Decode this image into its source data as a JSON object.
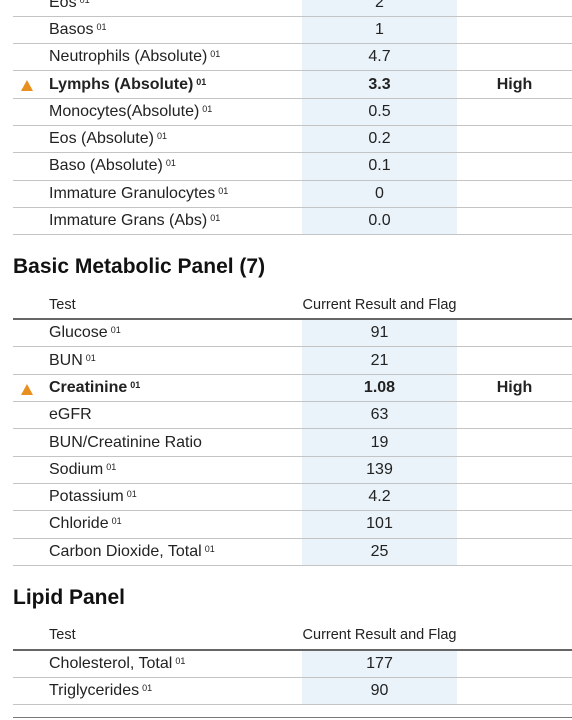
{
  "sections": [
    {
      "rows": [
        {
          "test": "Eos",
          "lab": "01",
          "result": "2"
        },
        {
          "test": "Basos",
          "lab": "01",
          "result": "1"
        },
        {
          "test": "Neutrophils (Absolute)",
          "lab": "01",
          "result": "4.7"
        },
        {
          "test": "Lymphs (Absolute)",
          "lab": "01",
          "result": "3.3",
          "flag": "High"
        },
        {
          "test": "Monocytes(Absolute)",
          "lab": "01",
          "result": "0.5"
        },
        {
          "test": "Eos (Absolute)",
          "lab": "01",
          "result": "0.2"
        },
        {
          "test": "Baso (Absolute)",
          "lab": "01",
          "result": "0.1"
        },
        {
          "test": "Immature Granulocytes",
          "lab": "01",
          "result": "0"
        },
        {
          "test": "Immature Grans (Abs)",
          "lab": "01",
          "result": "0.0"
        }
      ]
    },
    {
      "title": "Basic Metabolic Panel (7)",
      "header": {
        "test": "Test",
        "result": "Current Result and Flag"
      },
      "rows": [
        {
          "test": "Glucose",
          "lab": "01",
          "result": "91"
        },
        {
          "test": "BUN",
          "lab": "01",
          "result": "21"
        },
        {
          "test": "Creatinine",
          "lab": "01",
          "result": "1.08",
          "flag": "High"
        },
        {
          "test": "eGFR",
          "result": "63"
        },
        {
          "test": "BUN/Creatinine Ratio",
          "result": "19"
        },
        {
          "test": "Sodium",
          "lab": "01",
          "result": "139"
        },
        {
          "test": "Potassium",
          "lab": "01",
          "result": "4.2"
        },
        {
          "test": "Chloride",
          "lab": "01",
          "result": "101"
        },
        {
          "test": "Carbon Dioxide, Total",
          "lab": "01",
          "result": "25"
        }
      ]
    },
    {
      "title": "Lipid Panel",
      "header": {
        "test": "Test",
        "result": "Current Result and Flag"
      },
      "rows": [
        {
          "test": "Cholesterol, Total",
          "lab": "01",
          "result": "177"
        },
        {
          "test": "Triglycerides",
          "lab": "01",
          "result": "90"
        }
      ]
    }
  ]
}
